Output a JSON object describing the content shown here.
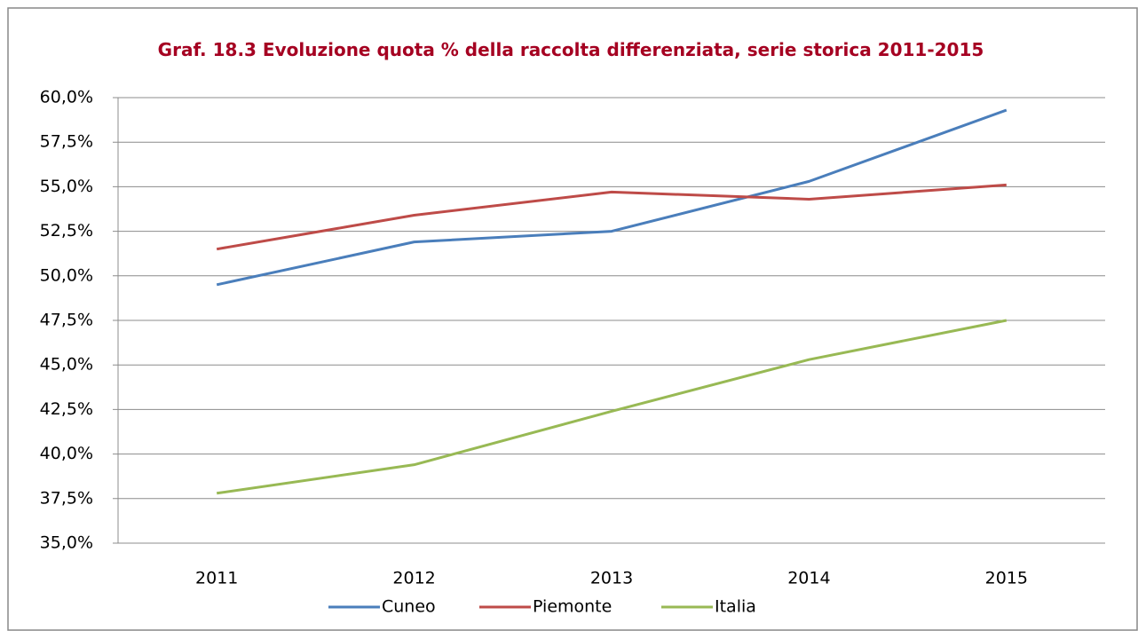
{
  "chart_data": {
    "type": "line",
    "title": "Graf. 18.3 Evoluzione quota % della raccolta differenziata, serie storica 2011-2015",
    "categories": [
      "2011",
      "2012",
      "2013",
      "2014",
      "2015"
    ],
    "series": [
      {
        "name": "Cuneo",
        "color": "#4a7ebb",
        "values": [
          49.5,
          51.9,
          52.5,
          55.3,
          59.3
        ]
      },
      {
        "name": "Piemonte",
        "color": "#be4b48",
        "values": [
          51.5,
          53.4,
          54.7,
          54.3,
          55.1
        ]
      },
      {
        "name": "Italia",
        "color": "#98b954",
        "values": [
          37.8,
          39.4,
          42.4,
          45.3,
          47.5
        ]
      }
    ],
    "ylim": [
      35,
      60
    ],
    "yticks": [
      {
        "value": 35,
        "label": "35,0%"
      },
      {
        "value": 37.5,
        "label": "37,5%"
      },
      {
        "value": 40,
        "label": "40,0%"
      },
      {
        "value": 42.5,
        "label": "42,5%"
      },
      {
        "value": 45,
        "label": "45,0%"
      },
      {
        "value": 47.5,
        "label": "47,5%"
      },
      {
        "value": 50,
        "label": "50,0%"
      },
      {
        "value": 52.5,
        "label": "52,5%"
      },
      {
        "value": 55,
        "label": "55,0%"
      },
      {
        "value": 57.5,
        "label": "57,5%"
      },
      {
        "value": 60,
        "label": "60,0%"
      }
    ],
    "grid": true,
    "legend": "bottom"
  }
}
